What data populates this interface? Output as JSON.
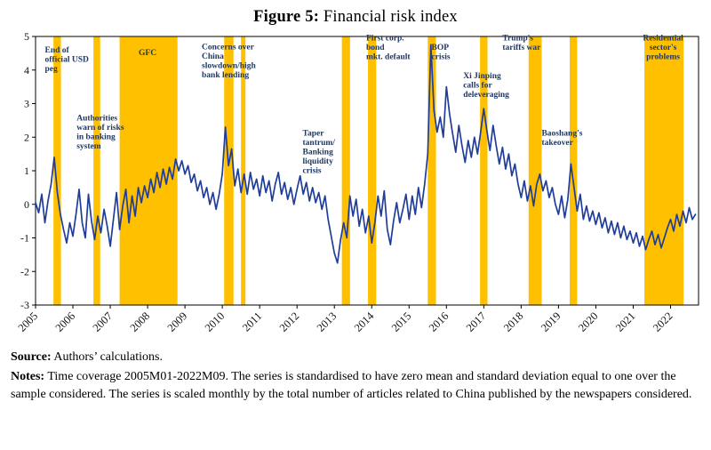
{
  "title": {
    "prefix": "Figure 5:",
    "text": " Financial risk index"
  },
  "source": {
    "label": "Source:",
    "text": " Authors’ calculations."
  },
  "notes": {
    "label": "Notes:",
    "text": " Time coverage 2005M01-2022M09. The series is standardised to have zero mean and standard deviation equal to one over the sample considered. The series is scaled monthly by the total number of articles related to China published by the newspapers considered."
  },
  "chart_data": {
    "type": "line",
    "title": "Financial risk index",
    "frequency": "monthly",
    "coverage": "2005M01-2022M09",
    "x_start_year": 2005,
    "x_domain": [
      2005.0,
      2022.75
    ],
    "ylim": [
      -3,
      5
    ],
    "y_ticks": [
      5,
      4,
      3,
      2,
      1,
      0,
      -1,
      -2,
      -3
    ],
    "x_ticks": [
      2005,
      2006,
      2007,
      2008,
      2009,
      2010,
      2011,
      2012,
      2013,
      2014,
      2015,
      2016,
      2017,
      2018,
      2019,
      2020,
      2021,
      2022
    ],
    "grid": false,
    "legend": "none",
    "colors": {
      "line": "#1f3d99",
      "band": "#ffc000",
      "annotation": "#1f3864",
      "axis": "#000000"
    },
    "series": [
      {
        "name": "Financial risk index (standardised)",
        "color": "#1f3d99",
        "values": [
          0.05,
          -0.25,
          0.3,
          -0.55,
          0.1,
          0.6,
          1.4,
          0.35,
          -0.3,
          -0.75,
          -1.15,
          -0.55,
          -0.95,
          -0.3,
          0.45,
          -0.55,
          -1.0,
          0.3,
          -0.5,
          -1.05,
          -0.35,
          -0.85,
          -0.15,
          -0.65,
          -1.25,
          -0.45,
          0.35,
          -0.75,
          -0.05,
          0.45,
          -0.55,
          0.25,
          -0.35,
          0.5,
          0.05,
          0.55,
          0.2,
          0.75,
          0.35,
          0.95,
          0.5,
          1.05,
          0.6,
          1.1,
          0.75,
          1.35,
          1.0,
          1.3,
          0.9,
          1.15,
          0.65,
          0.9,
          0.4,
          0.7,
          0.2,
          0.5,
          0.0,
          0.35,
          -0.15,
          0.3,
          0.9,
          2.3,
          1.15,
          1.65,
          0.55,
          1.05,
          0.35,
          0.9,
          0.3,
          0.95,
          0.45,
          0.75,
          0.25,
          0.85,
          0.35,
          0.7,
          0.1,
          0.6,
          0.95,
          0.3,
          0.65,
          0.15,
          0.5,
          0.0,
          0.45,
          0.85,
          0.3,
          0.65,
          0.1,
          0.5,
          0.05,
          0.35,
          -0.15,
          0.25,
          -0.45,
          -0.95,
          -1.45,
          -1.75,
          -1.05,
          -0.55,
          -1.0,
          0.25,
          -0.35,
          0.15,
          -0.65,
          -0.15,
          -0.85,
          -0.35,
          -1.15,
          -0.55,
          0.25,
          -0.35,
          0.4,
          -0.75,
          -1.2,
          -0.5,
          0.05,
          -0.55,
          -0.15,
          0.3,
          -0.45,
          0.25,
          -0.3,
          0.5,
          -0.1,
          0.6,
          1.5,
          4.75,
          2.8,
          2.15,
          2.6,
          2.0,
          3.5,
          2.7,
          2.1,
          1.55,
          2.35,
          1.75,
          1.25,
          1.9,
          1.4,
          2.0,
          1.5,
          2.15,
          2.85,
          2.2,
          1.6,
          2.35,
          1.75,
          1.2,
          1.7,
          1.05,
          1.5,
          0.85,
          1.2,
          0.6,
          0.2,
          0.7,
          0.1,
          0.55,
          -0.05,
          0.6,
          0.9,
          0.4,
          0.7,
          0.2,
          0.5,
          0.0,
          -0.3,
          0.25,
          -0.4,
          0.15,
          1.2,
          0.5,
          -0.2,
          0.3,
          -0.45,
          -0.05,
          -0.5,
          -0.2,
          -0.6,
          -0.25,
          -0.7,
          -0.4,
          -0.85,
          -0.5,
          -0.9,
          -0.55,
          -1.0,
          -0.65,
          -1.05,
          -0.8,
          -1.15,
          -0.85,
          -1.25,
          -0.95,
          -1.35,
          -1.05,
          -0.8,
          -1.2,
          -0.9,
          -1.3,
          -1.0,
          -0.7,
          -0.45,
          -0.8,
          -0.3,
          -0.65,
          -0.2,
          -0.55,
          -0.1,
          -0.45,
          -0.3
        ]
      }
    ],
    "bands": [
      {
        "event": "End of official USD peg",
        "start": 2005.48,
        "end": 2005.68
      },
      {
        "event": "Authorities warn of risks in banking system",
        "start": 2006.55,
        "end": 2006.73
      },
      {
        "event": "GFC",
        "start": 2007.25,
        "end": 2008.8
      },
      {
        "event": "Concerns over China slowdown/high bank lending",
        "start": 2010.05,
        "end": 2010.3
      },
      {
        "event": "Concerns over China slowdown/high bank lending (second episode)",
        "start": 2010.5,
        "end": 2010.62
      },
      {
        "event": "Taper tantrum/Banking liquidity crisis",
        "start": 2013.2,
        "end": 2013.42
      },
      {
        "event": "First corp. bond mkt. default",
        "start": 2013.9,
        "end": 2014.12
      },
      {
        "event": "BOP crisis",
        "start": 2015.5,
        "end": 2015.72
      },
      {
        "event": "Xi Jinping calls for deleveraging",
        "start": 2016.9,
        "end": 2017.1
      },
      {
        "event": "Trump's tariffs war",
        "start": 2018.2,
        "end": 2018.55
      },
      {
        "event": "Baoshang's takeover",
        "start": 2019.3,
        "end": 2019.5
      },
      {
        "event": "Residential sector's problems",
        "start": 2021.3,
        "end": 2022.35
      }
    ],
    "annotations": [
      {
        "lines": [
          "End of",
          "official USD",
          "peg"
        ],
        "x": 2005.25,
        "y": 4.52,
        "anchor": "start"
      },
      {
        "lines": [
          "Authorities",
          "warn of risks",
          "in banking",
          "system"
        ],
        "x": 2006.1,
        "y": 2.5,
        "anchor": "start"
      },
      {
        "lines": [
          "GFC"
        ],
        "x": 2008.0,
        "y": 4.45,
        "anchor": "middle"
      },
      {
        "lines": [
          "Concerns over",
          "China",
          "slowdown/high",
          "bank lending"
        ],
        "x": 2009.45,
        "y": 4.62,
        "anchor": "start"
      },
      {
        "lines": [
          "Taper",
          "tantrum/",
          "Banking",
          "liquidity",
          "crisis"
        ],
        "x": 2012.15,
        "y": 2.05,
        "anchor": "start"
      },
      {
        "lines": [
          "First corp.",
          "bond",
          "mkt. default"
        ],
        "x": 2013.85,
        "y": 4.88,
        "anchor": "start"
      },
      {
        "lines": [
          "BOP",
          "crisis"
        ],
        "x": 2015.6,
        "y": 4.6,
        "anchor": "start"
      },
      {
        "lines": [
          "Xi Jinping",
          "calls for",
          "deleveraging"
        ],
        "x": 2016.45,
        "y": 3.75,
        "anchor": "start"
      },
      {
        "lines": [
          "Trump's",
          "tariffs war"
        ],
        "x": 2017.5,
        "y": 4.88,
        "anchor": "start"
      },
      {
        "lines": [
          "Baoshang's",
          "takeover"
        ],
        "x": 2018.55,
        "y": 2.05,
        "anchor": "start"
      },
      {
        "lines": [
          "Residential",
          "sector's",
          "problems"
        ],
        "x": 2021.8,
        "y": 4.88,
        "anchor": "middle"
      }
    ]
  }
}
